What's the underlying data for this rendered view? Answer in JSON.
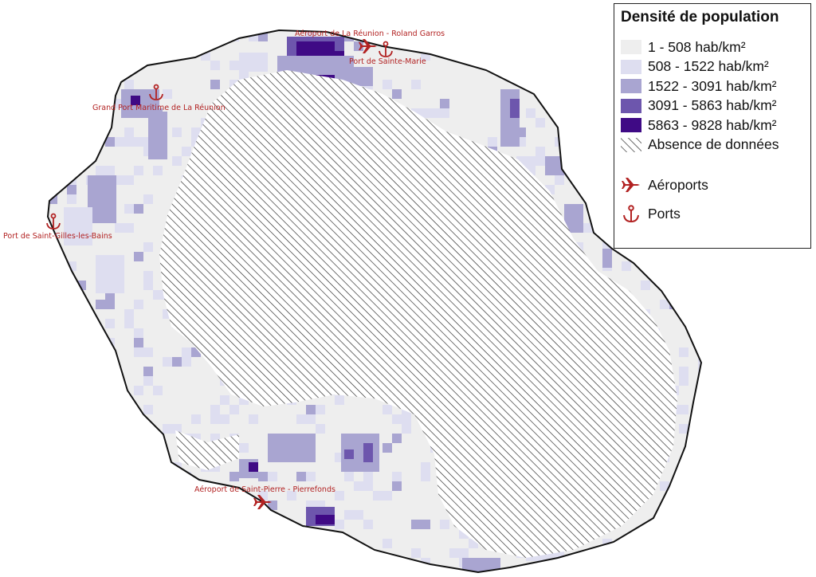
{
  "legend": {
    "title": "Densité de population",
    "classes": [
      {
        "label": "1 - 508 hab/km²",
        "color": "#eeeeee",
        "min": 1,
        "max": 508
      },
      {
        "label": "508 - 1522 hab/km²",
        "color": "#dedef0",
        "min": 508,
        "max": 1522
      },
      {
        "label": "1522 - 3091 hab/km²",
        "color": "#a9a5d1",
        "min": 1522,
        "max": 3091
      },
      {
        "label": "3091 - 5863 hab/km²",
        "color": "#6d56ad",
        "min": 3091,
        "max": 5863
      },
      {
        "label": "5863 - 9828 hab/km²",
        "color": "#3f0a85",
        "min": 5863,
        "max": 9828
      }
    ],
    "nodata_label": "Absence de données",
    "airports_label": "Aéroports",
    "ports_label": "Ports"
  },
  "places": {
    "airport_north": "Aéroport de La Réunion - Roland Garros",
    "port_sainte_marie": "Port de Sainte-Marie",
    "grand_port": "Grand Port Maritime de La Réunion",
    "port_saint_gilles": "Port de Saint-Gilles-les-Bains",
    "airport_south": "Aéroport de Saint-Pierre - Pierrefonds"
  },
  "colors": {
    "symbol": "#b22222",
    "coast": "#111111",
    "hatch": "#222222",
    "land": "#eeeeee"
  }
}
